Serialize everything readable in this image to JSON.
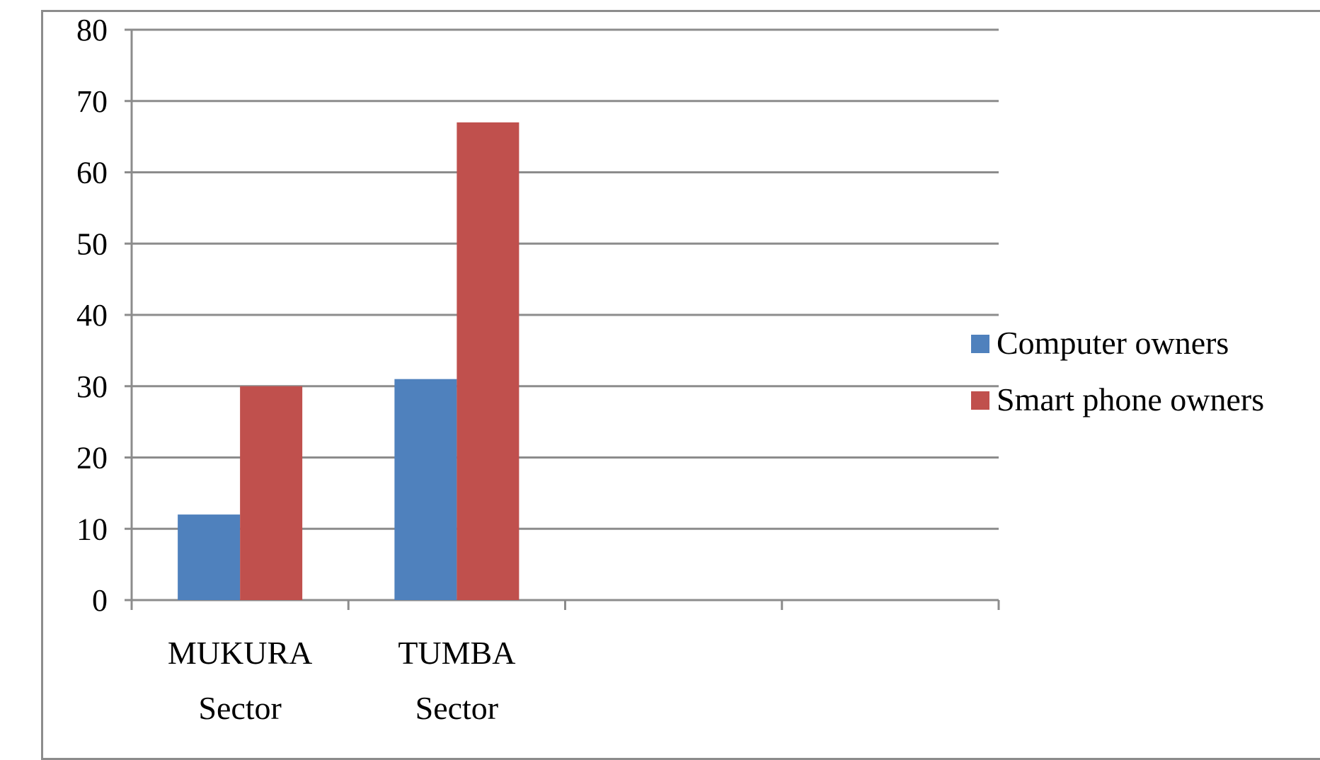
{
  "chart_data": {
    "type": "bar",
    "title": "",
    "xlabel": "",
    "ylabel": "",
    "categories": [
      [
        "MUKURA",
        "Sector"
      ],
      [
        "TUMBA",
        "Sector"
      ],
      [
        "",
        ""
      ],
      [
        "",
        ""
      ]
    ],
    "series": [
      {
        "name": "Computer owners",
        "values": [
          12,
          31,
          null,
          null
        ],
        "color": "#4f81bd"
      },
      {
        "name": "Smart phone owners",
        "values": [
          30,
          67,
          null,
          null
        ],
        "color": "#c0504d"
      }
    ],
    "ylim": [
      0,
      80
    ],
    "yticks": [
      0,
      10,
      20,
      30,
      40,
      50,
      60,
      70,
      80
    ],
    "grid": true,
    "legend_position": "right",
    "colors": {
      "gridline": "#8c8c8c",
      "axis": "#8c8c8c",
      "frame": "#8c8c8c"
    }
  }
}
